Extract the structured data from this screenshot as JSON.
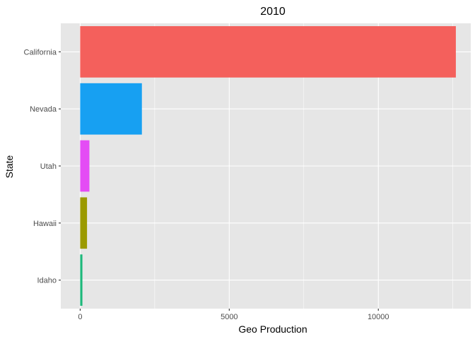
{
  "chart_data": {
    "type": "bar",
    "orientation": "horizontal",
    "title": "2010",
    "xlabel": "Geo Production",
    "ylabel": "State",
    "categories": [
      "Idaho",
      "Hawaii",
      "Utah",
      "Nevada",
      "California"
    ],
    "values": [
      75,
      230,
      310,
      2070,
      12600
    ],
    "colors": [
      "#1db87a",
      "#9b9a00",
      "#e44cf5",
      "#17a0f2",
      "#f4605c"
    ],
    "xlim": [
      -650,
      13100
    ],
    "xticks": [
      0,
      5000,
      10000
    ],
    "xtick_labels": [
      "0",
      "5000",
      "10000"
    ],
    "grid": true,
    "legend": "none"
  },
  "theme": {
    "panel_background": "#e6e6e6",
    "grid_color": "#ffffff",
    "tick_color": "#333333"
  }
}
